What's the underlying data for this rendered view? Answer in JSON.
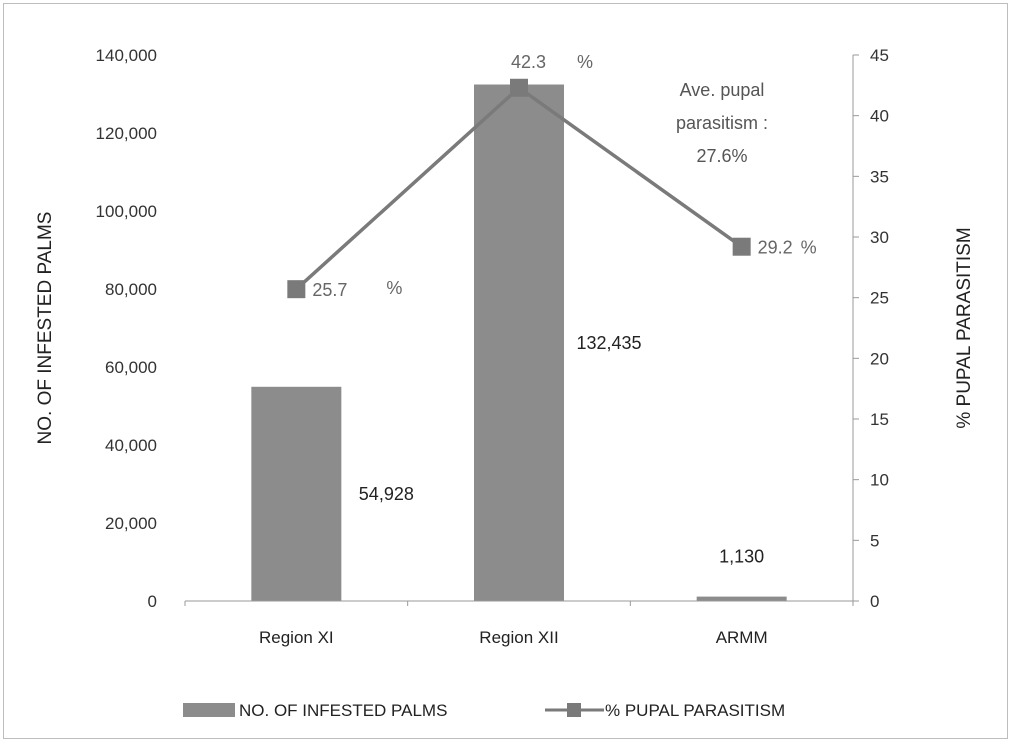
{
  "chart_data": {
    "type": "bar",
    "categories": [
      "Region XI",
      "Region XII",
      "ARMM"
    ],
    "series": [
      {
        "name": "NO. OF INFESTED PALMS",
        "type": "bar",
        "axis": "left",
        "values": [
          54928,
          132435,
          1130
        ],
        "labels": [
          "54,928",
          "132,435",
          "1,130"
        ],
        "color": "#8c8c8c"
      },
      {
        "name": "% PUPAL PARASITISM",
        "type": "line",
        "axis": "right",
        "values": [
          25.7,
          42.3,
          29.2
        ],
        "labels": [
          "25.7",
          "42.3",
          "29.2"
        ],
        "label_unit": "%",
        "color": "#7a7a7a"
      }
    ],
    "ylabel_left": "NO. OF  INFESTED PALMS",
    "ylabel_right": "% PUPAL PARASITISM",
    "ylim_left": [
      0,
      140000
    ],
    "ylim_right": [
      0,
      45
    ],
    "yticks_left": [
      "0",
      "20,000",
      "40,000",
      "60,000",
      "80,000",
      "100,000",
      "120,000",
      "140,000"
    ],
    "yticks_left_values": [
      0,
      20000,
      40000,
      60000,
      80000,
      100000,
      120000,
      140000
    ],
    "yticks_right": [
      "0",
      "5",
      "10",
      "15",
      "20",
      "25",
      "30",
      "35",
      "40",
      "45"
    ],
    "yticks_right_values": [
      0,
      5,
      10,
      15,
      20,
      25,
      30,
      35,
      40,
      45
    ],
    "annotation": [
      "Ave.  pupal",
      "parasitism  :",
      "27.6%"
    ],
    "legend_position": "bottom",
    "grid": false
  }
}
